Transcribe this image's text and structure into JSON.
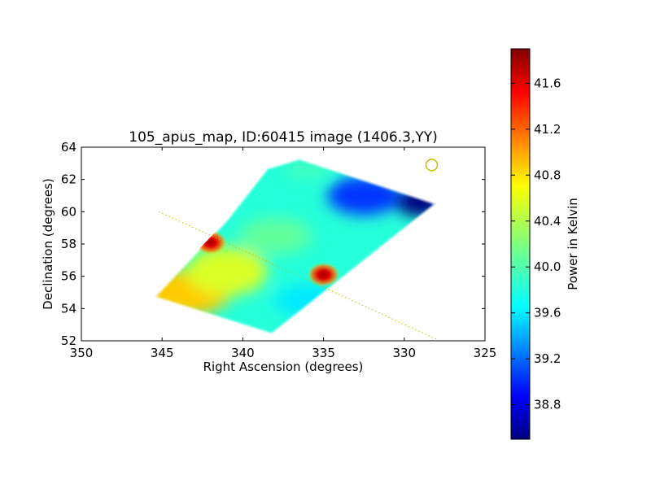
{
  "chart_data": {
    "type": "heatmap",
    "title": "105_apus_map, ID:60415 image (1406.3,YY)",
    "xlabel": "Right Ascension (degrees)",
    "ylabel": "Declination (degrees)",
    "colorbar_label": "Power in Kelvin",
    "xlim": [
      350,
      325
    ],
    "ylim": [
      52,
      64
    ],
    "xticks": [
      350,
      345,
      340,
      335,
      330,
      325
    ],
    "yticks": [
      52,
      54,
      56,
      58,
      60,
      62,
      64
    ],
    "colorbar_range": [
      38.5,
      41.9
    ],
    "colorbar_ticks": [
      "38.8",
      "39.2",
      "39.6",
      "40.0",
      "40.4",
      "40.8",
      "41.2",
      "41.6"
    ],
    "colormap": "jet",
    "coverage_polygon": [
      [
        345.5,
        54.7
      ],
      [
        338.2,
        52.4
      ],
      [
        328.0,
        60.5
      ],
      [
        329.5,
        61.0
      ],
      [
        336.5,
        63.3
      ],
      [
        338.5,
        62.7
      ],
      [
        341.0,
        59.5
      ]
    ],
    "map_values": {
      "corner_south_east": 40.8,
      "north_west_edge": 39.8,
      "center": 39.9,
      "north_east_corner": 38.5
    },
    "hot_spots": [
      {
        "ra": 342.0,
        "dec": 58.1,
        "value": 41.9
      },
      {
        "ra": 335.0,
        "dec": 56.1,
        "value": 41.9
      }
    ],
    "dotted_track": [
      [
        345.2,
        60.0
      ],
      [
        328.0,
        52.1
      ]
    ],
    "marker_circle": {
      "ra": 328.3,
      "dec": 62.9,
      "color": "#bfbf00"
    },
    "grid": false,
    "grid_colors": [
      "#00007f",
      "#0000ff",
      "#007fff",
      "#00ffff",
      "#7fff7f",
      "#ffff00",
      "#ff7f00",
      "#ff0000",
      "#7f0000"
    ]
  }
}
